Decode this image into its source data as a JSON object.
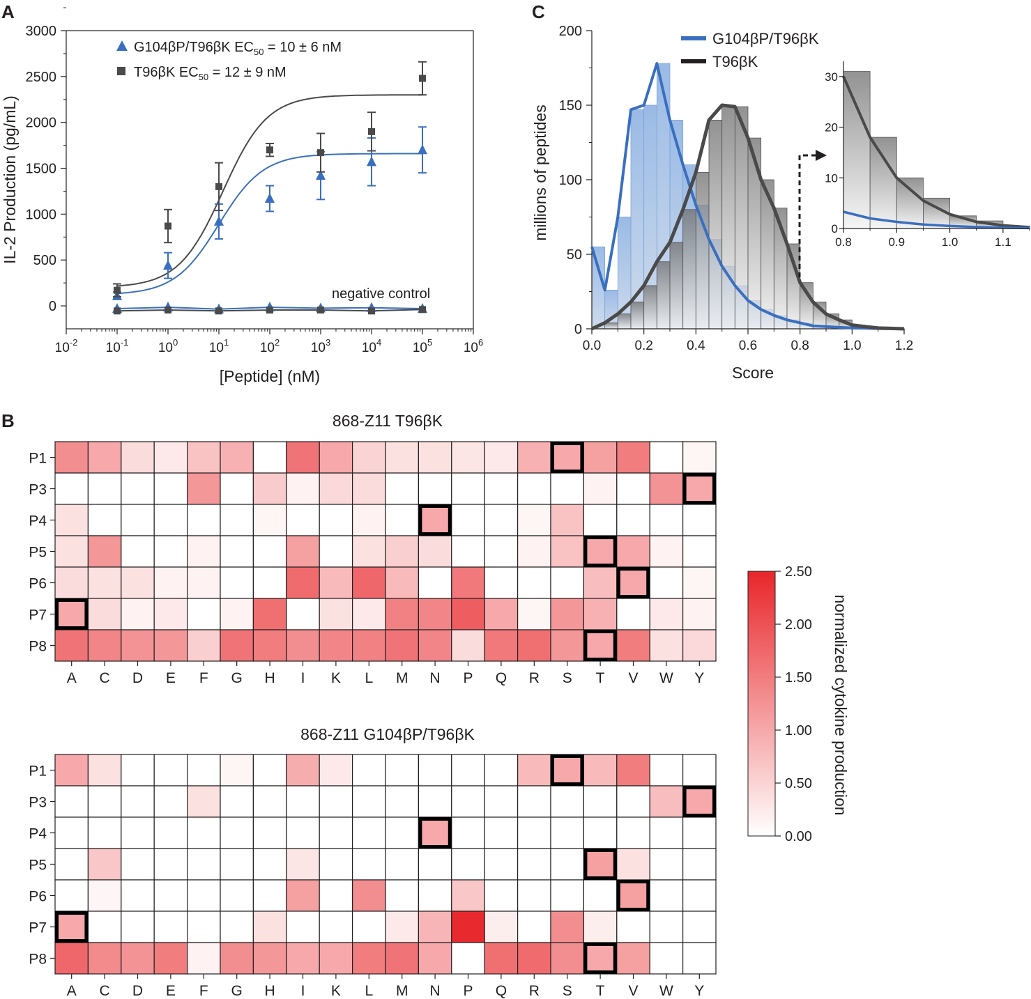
{
  "colors": {
    "blue": "#3a6fbf",
    "dark": "#4a4a4a",
    "heat_max": "#e8262a"
  },
  "chart_data": [
    {
      "panel": "A",
      "type": "line",
      "xscale": "log10",
      "xlabel": "[Peptide] (nM)",
      "ylabel": "IL-2 Production (pg/mL)",
      "xticks": [
        {
          "base": "10",
          "exp": "-2"
        },
        {
          "base": "10",
          "exp": "-1"
        },
        {
          "base": "10",
          "exp": "0"
        },
        {
          "base": "10",
          "exp": "1"
        },
        {
          "base": "10",
          "exp": "2"
        },
        {
          "base": "10",
          "exp": "3"
        },
        {
          "base": "10",
          "exp": "4"
        },
        {
          "base": "10",
          "exp": "5"
        },
        {
          "base": "10",
          "exp": "6"
        }
      ],
      "xlim_log": [
        -2,
        6
      ],
      "ylim": [
        -250,
        3000
      ],
      "yticks": [
        "0",
        "500",
        "1000",
        "1500",
        "2000",
        "2500",
        "3000"
      ],
      "x_log": [
        -1,
        0,
        1,
        2,
        3,
        4,
        5
      ],
      "legend": [
        {
          "marker": "triangle",
          "text": "G104βP/T96βK EC",
          "sub": "50",
          "tail": " = 10 ± 6 nM"
        },
        {
          "marker": "square",
          "text": "T96βK EC",
          "sub": "50",
          "tail": " = 12 ± 9 nM"
        }
      ],
      "annotation": "negative control",
      "series": [
        {
          "name": "G104βP/T96βK",
          "marker": "triangle",
          "values": [
            110,
            440,
            920,
            1170,
            1420,
            1570,
            1700
          ],
          "err": [
            40,
            140,
            190,
            140,
            260,
            260,
            250
          ],
          "fit": {
            "bottom": 120,
            "top": 1660,
            "log_ec50": 1.0,
            "hill": 0.5
          }
        },
        {
          "name": "T96βK",
          "marker": "square",
          "values": [
            170,
            870,
            1300,
            1700,
            1670,
            1900,
            2480
          ],
          "err": [
            70,
            180,
            260,
            70,
            210,
            210,
            180
          ],
          "fit": {
            "bottom": 200,
            "top": 2300,
            "log_ec50": 1.08,
            "hill": 0.5
          }
        },
        {
          "name": "G104βP/T96βK negative control",
          "marker": "triangle",
          "values": [
            -30,
            -15,
            -35,
            -15,
            -25,
            -20,
            -30
          ]
        },
        {
          "name": "T96βK negative control",
          "marker": "square",
          "values": [
            -55,
            -45,
            -55,
            -45,
            -45,
            -55,
            -40
          ]
        }
      ]
    },
    {
      "panel": "C",
      "type": "histogram",
      "xlabel": "Score",
      "ylabel": "millions of peptides",
      "xlim": [
        0,
        1.2
      ],
      "ylim": [
        0,
        200
      ],
      "xticks": [
        "0.0",
        "0.2",
        "0.4",
        "0.6",
        "0.8",
        "1.0",
        "1.2"
      ],
      "yticks": [
        "0",
        "50",
        "100",
        "150",
        "200"
      ],
      "bin_width": 0.05,
      "bin_starts": [
        0,
        0.05,
        0.1,
        0.15,
        0.2,
        0.25,
        0.3,
        0.35,
        0.4,
        0.45,
        0.5,
        0.55,
        0.6,
        0.65,
        0.7,
        0.75,
        0.8,
        0.85,
        0.9,
        0.95,
        1.0,
        1.05,
        1.1,
        1.15
      ],
      "legend": [
        "G104βP/T96βK",
        "T96βK"
      ],
      "series": [
        {
          "name": "G104βP/T96βK",
          "values": [
            55,
            26,
            75,
            147,
            150,
            178,
            140,
            110,
            83,
            60,
            42,
            29,
            19,
            13,
            9,
            6,
            4,
            2,
            1.5,
            1,
            0.6,
            0.4,
            0.2,
            0.1
          ]
        },
        {
          "name": "T96βK",
          "values": [
            0,
            4,
            10,
            18,
            29,
            45,
            58,
            80,
            105,
            140,
            150,
            149,
            128,
            100,
            81,
            57,
            31,
            18,
            10,
            6,
            2.5,
            1.5,
            0.5,
            0.3
          ]
        }
      ],
      "inset": {
        "xlim": [
          0.8,
          1.15
        ],
        "ylim": [
          0,
          33
        ],
        "xticks": [
          "0.8",
          "0.9",
          "1.0",
          "1.1"
        ],
        "yticks": [
          "0",
          "10",
          "20",
          "30"
        ],
        "blue_curve": [
          [
            0.8,
            3.3
          ],
          [
            0.85,
            2.0
          ],
          [
            0.9,
            1.3
          ],
          [
            0.95,
            0.8
          ],
          [
            1.0,
            0.5
          ],
          [
            1.05,
            0.3
          ],
          [
            1.1,
            0.15
          ],
          [
            1.15,
            0.08
          ]
        ],
        "gray_curve": [
          [
            0.8,
            30
          ],
          [
            0.85,
            18
          ],
          [
            0.9,
            10
          ],
          [
            0.95,
            5.5
          ],
          [
            1.0,
            2.8
          ],
          [
            1.05,
            1.3
          ],
          [
            1.1,
            0.6
          ],
          [
            1.15,
            0.25
          ]
        ]
      }
    },
    {
      "panel": "B",
      "type": "heatmap",
      "title": "868-Z11 T96βK",
      "rows": [
        "P1",
        "P3",
        "P4",
        "P5",
        "P6",
        "P7",
        "P8"
      ],
      "cols": [
        "A",
        "C",
        "D",
        "E",
        "F",
        "G",
        "H",
        "I",
        "K",
        "L",
        "M",
        "N",
        "P",
        "Q",
        "R",
        "S",
        "T",
        "V",
        "W",
        "Y"
      ],
      "vmin": 0,
      "vmax": 2.5,
      "values": [
        [
          1.3,
          1.0,
          0.4,
          0.25,
          0.7,
          0.9,
          0,
          1.6,
          1.0,
          0.5,
          0.35,
          0.35,
          0.3,
          0.25,
          0.9,
          1.0,
          1.1,
          1.5,
          0,
          0.12
        ],
        [
          0,
          0,
          0,
          0,
          1.2,
          0,
          0.6,
          0.15,
          0.45,
          0.4,
          0,
          0,
          0,
          0,
          0,
          0,
          0.15,
          0,
          1.25,
          1.0
        ],
        [
          0.35,
          0,
          0,
          0,
          0,
          0,
          0.12,
          0,
          0,
          0.15,
          0,
          1.0,
          0,
          0,
          0.12,
          0.7,
          0,
          0,
          0,
          0
        ],
        [
          0.35,
          1.2,
          0,
          0,
          0.15,
          0,
          0,
          1.1,
          0,
          0.35,
          0.55,
          0.4,
          0,
          0,
          0.15,
          0.7,
          1.0,
          1.0,
          0.15,
          0
        ],
        [
          0.4,
          0.35,
          0.35,
          0.15,
          0.15,
          0,
          0,
          1.7,
          0.8,
          1.75,
          0.8,
          0,
          1.55,
          0,
          0,
          0,
          0.75,
          1.0,
          0,
          0.12
        ],
        [
          1.0,
          0.4,
          0.15,
          0.25,
          0,
          0.15,
          1.65,
          0,
          0.35,
          0.25,
          1.45,
          1.4,
          1.85,
          1.0,
          0.12,
          1.2,
          0.9,
          0,
          0.25,
          0.15
        ],
        [
          1.6,
          1.4,
          1.25,
          1.2,
          0.55,
          1.6,
          1.5,
          1.3,
          1.4,
          1.45,
          1.6,
          1.4,
          0.4,
          1.55,
          1.65,
          1.2,
          1.0,
          1.5,
          0.35,
          0.45
        ]
      ],
      "outlined": [
        [
          0,
          15
        ],
        [
          1,
          19
        ],
        [
          2,
          11
        ],
        [
          3,
          16
        ],
        [
          4,
          17
        ],
        [
          5,
          0
        ],
        [
          6,
          16
        ]
      ]
    },
    {
      "panel": "B",
      "type": "heatmap",
      "title": "868-Z11 G104βP/T96βK",
      "rows": [
        "P1",
        "P3",
        "P4",
        "P5",
        "P6",
        "P7",
        "P8"
      ],
      "cols": [
        "A",
        "C",
        "D",
        "E",
        "F",
        "G",
        "H",
        "I",
        "K",
        "L",
        "M",
        "N",
        "P",
        "Q",
        "R",
        "S",
        "T",
        "V",
        "W",
        "Y"
      ],
      "vmin": 0,
      "vmax": 2.5,
      "values": [
        [
          1.0,
          0.35,
          0,
          0,
          0,
          0.12,
          0,
          0.95,
          0.25,
          0,
          0,
          0,
          0,
          0,
          0.8,
          1.0,
          0.8,
          1.5,
          0,
          0
        ],
        [
          0,
          0,
          0,
          0,
          0.35,
          0,
          0,
          0,
          0,
          0,
          0,
          0,
          0,
          0,
          0,
          0,
          0,
          0,
          0.75,
          1.0
        ],
        [
          0,
          0,
          0,
          0,
          0,
          0,
          0,
          0,
          0,
          0,
          0,
          1.0,
          0,
          0,
          0,
          0,
          0,
          0,
          0,
          0
        ],
        [
          0,
          0.65,
          0,
          0,
          0,
          0,
          0,
          0.3,
          0,
          0,
          0,
          0,
          0,
          0,
          0,
          0,
          1.1,
          0.35,
          0,
          0
        ],
        [
          0,
          0.1,
          0,
          0,
          0,
          0,
          0,
          1.1,
          0,
          1.3,
          0,
          0,
          0.65,
          0,
          0,
          0,
          0,
          1.1,
          0,
          0
        ],
        [
          1.0,
          0,
          0,
          0,
          0,
          0,
          0.35,
          0,
          0,
          0,
          0.25,
          0.85,
          2.45,
          0.2,
          0,
          1.3,
          0.2,
          0,
          0,
          0
        ],
        [
          1.75,
          1.35,
          1.25,
          1.5,
          0.15,
          1.3,
          1.2,
          1.0,
          1.0,
          1.5,
          1.6,
          1.0,
          0,
          1.65,
          1.7,
          1.3,
          1.0,
          1.1,
          0,
          0
        ]
      ],
      "outlined": [
        [
          0,
          15
        ],
        [
          1,
          19
        ],
        [
          2,
          11
        ],
        [
          3,
          16
        ],
        [
          4,
          17
        ],
        [
          5,
          0
        ],
        [
          6,
          16
        ]
      ]
    },
    {
      "panel": "B",
      "type": "colorbar",
      "label": "normalized cytokine production",
      "ticks": [
        "0.00",
        "0.50",
        "1.00",
        "1.50",
        "2.00",
        "2.50"
      ]
    }
  ],
  "panel_labels": {
    "a": "A",
    "b": "B",
    "c": "C"
  }
}
